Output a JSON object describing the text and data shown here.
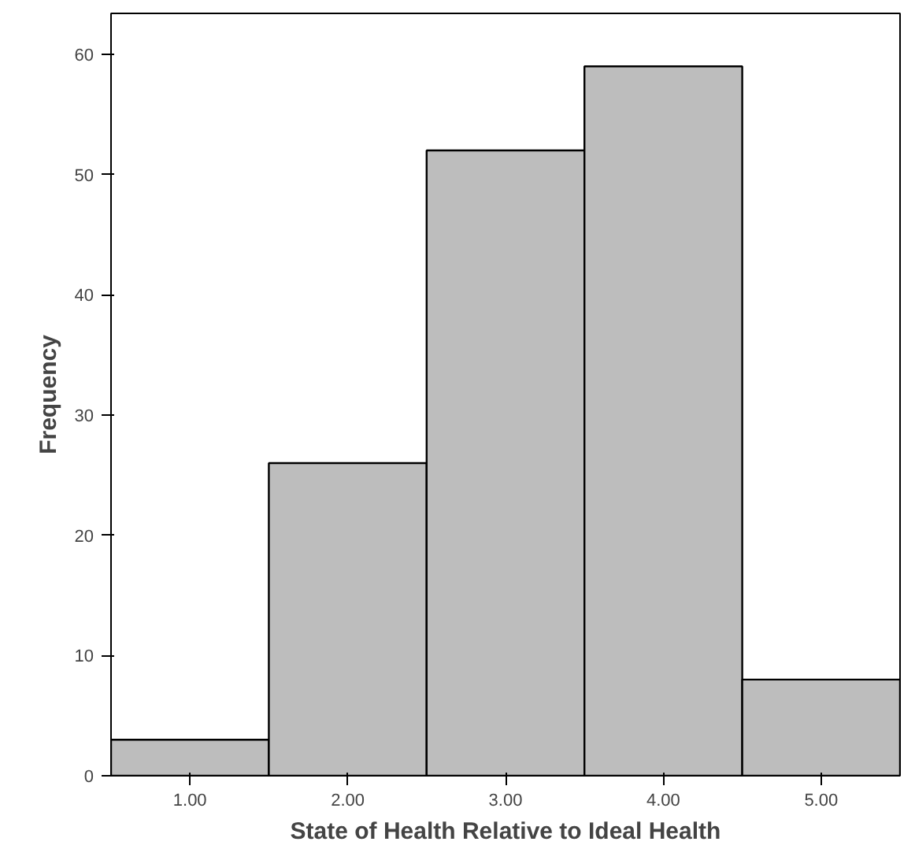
{
  "chart_data": {
    "type": "histogram",
    "xlabel": "State of Health Relative to Ideal Health",
    "ylabel": "Frequency",
    "bins": [
      0.5,
      1.5,
      2.5,
      3.5,
      4.5,
      5.5
    ],
    "values": [
      3,
      26,
      52,
      59,
      8
    ],
    "color": "#bdbdbd",
    "xlim": [
      0.5,
      5.5
    ],
    "ylim": [
      0,
      63.4
    ],
    "xticks": [
      {
        "value": 1,
        "label": "1.00"
      },
      {
        "value": 2,
        "label": "2.00"
      },
      {
        "value": 3,
        "label": "3.00"
      },
      {
        "value": 4,
        "label": "4.00"
      },
      {
        "value": 5,
        "label": "5.00"
      }
    ],
    "yticks": [
      0,
      10,
      20,
      30,
      40,
      50,
      60
    ],
    "grid": false
  }
}
